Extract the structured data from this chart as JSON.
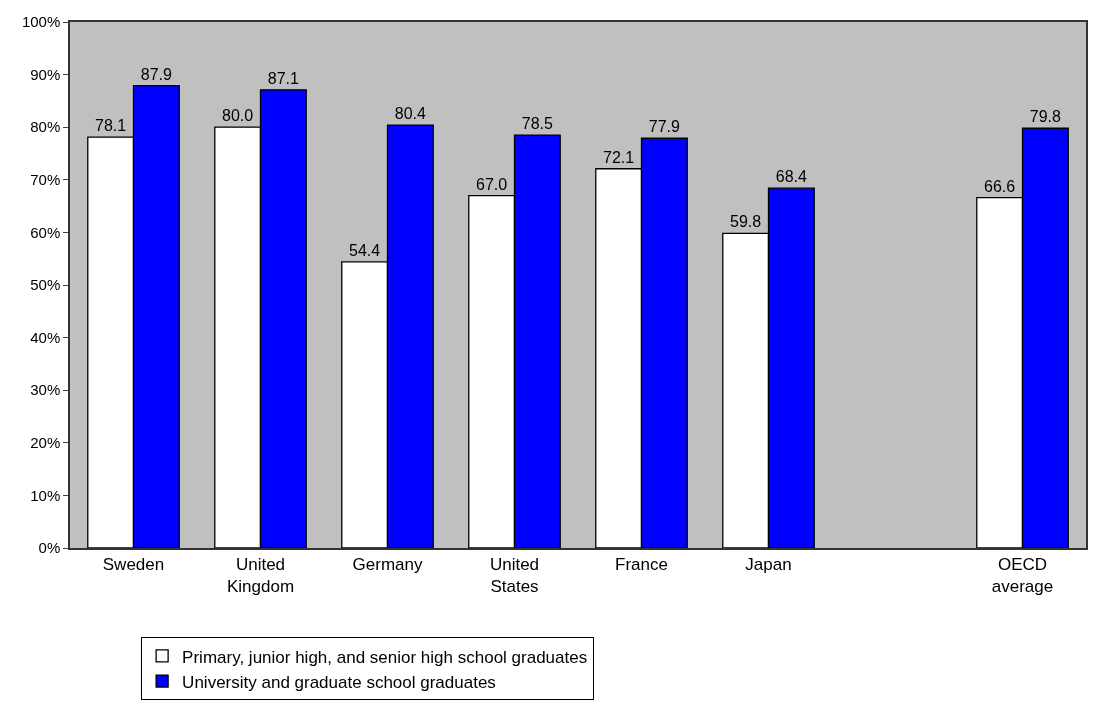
{
  "chart_data": {
    "type": "bar",
    "categories": [
      "Sweden",
      "United Kingdom",
      "Germany",
      "United States",
      "France",
      "Japan",
      null,
      "OECD average"
    ],
    "series": [
      {
        "name": "Primary, junior high, and senior high school graduates",
        "color": "#ffffff",
        "values": [
          78.1,
          80.0,
          54.4,
          67.0,
          72.1,
          59.8,
          null,
          66.6
        ],
        "value_labels": [
          "78.1",
          "80.0",
          "54.4",
          "67.0",
          "72.1",
          "59.8",
          null,
          "66.6"
        ]
      },
      {
        "name": "University and graduate school graduates",
        "color": "#0000ff",
        "values": [
          87.9,
          87.1,
          80.4,
          78.5,
          77.9,
          68.4,
          null,
          79.8
        ],
        "value_labels": [
          "87.9",
          "87.1",
          "80.4",
          "78.5",
          "77.9",
          "68.4",
          null,
          "79.8"
        ]
      }
    ],
    "ylim": [
      0,
      100
    ],
    "yticks": [
      {
        "value": 0,
        "label": "0%"
      },
      {
        "value": 10,
        "label": "10%"
      },
      {
        "value": 20,
        "label": "20%"
      },
      {
        "value": 30,
        "label": "30%"
      },
      {
        "value": 40,
        "label": "40%"
      },
      {
        "value": 50,
        "label": "50%"
      },
      {
        "value": 60,
        "label": "60%"
      },
      {
        "value": 70,
        "label": "70%"
      },
      {
        "value": 80,
        "label": "80%"
      },
      {
        "value": 90,
        "label": "90%"
      },
      {
        "value": 100,
        "label": "100%"
      }
    ],
    "grid": false,
    "legend": "bottom left"
  }
}
